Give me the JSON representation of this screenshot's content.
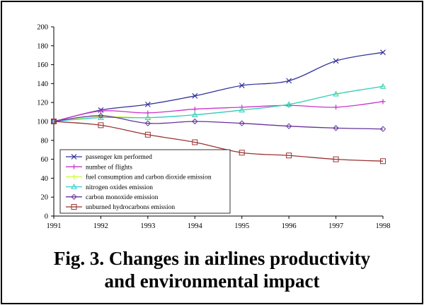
{
  "caption": {
    "line1": "Fig. 3. Changes in airlines productivity",
    "line2": "and environmental impact"
  },
  "chart_data": {
    "type": "line",
    "title": "",
    "xlabel": "",
    "ylabel": "",
    "x": [
      1991,
      1992,
      1993,
      1994,
      1995,
      1996,
      1997,
      1998
    ],
    "xlim": [
      1991,
      1998
    ],
    "ylim": [
      0,
      200
    ],
    "yticks": [
      0,
      20,
      40,
      60,
      80,
      100,
      120,
      140,
      160,
      180,
      200
    ],
    "grid": false,
    "legend_position": "bottom-left",
    "series": [
      {
        "name": "passenger km performed",
        "color": "#333399",
        "marker": "x",
        "values": [
          100,
          112,
          118,
          127,
          138,
          143,
          164,
          173
        ]
      },
      {
        "name": "number of flights",
        "color": "#cc33cc",
        "marker": "plus",
        "values": [
          100,
          111,
          109,
          113,
          115,
          117,
          115,
          121
        ]
      },
      {
        "name": "fuel consumption and carbon dioxide emission",
        "color": "#ccff33",
        "marker": "plus",
        "values": [
          100,
          105,
          104,
          107,
          112,
          118,
          129,
          137
        ]
      },
      {
        "name": "nitrogen oxides emission",
        "color": "#33cccc",
        "marker": "triangle",
        "values": [
          100,
          104,
          104,
          107,
          112,
          118,
          129,
          137
        ]
      },
      {
        "name": "carbon monoxide emission",
        "color": "#663399",
        "marker": "diamond",
        "values": [
          100,
          106,
          98,
          100,
          98,
          95,
          93,
          92
        ]
      },
      {
        "name": "unburned hydrocarbons emission",
        "color": "#993333",
        "marker": "square",
        "values": [
          100,
          96,
          86,
          78,
          67,
          64,
          60,
          58
        ]
      }
    ]
  }
}
